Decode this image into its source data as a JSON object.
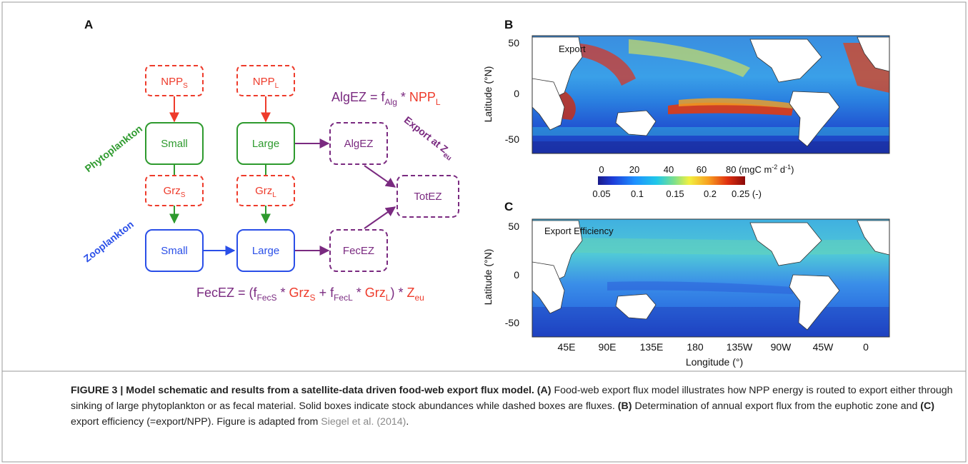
{
  "panels": {
    "a": "A",
    "b": "B",
    "c": "C"
  },
  "schematic": {
    "npp_small": "NPP",
    "npp_small_sub": "S",
    "npp_large": "NPP",
    "npp_large_sub": "L",
    "phyto_small": "Small",
    "phyto_large": "Large",
    "grz_small": "Grz",
    "grz_small_sub": "S",
    "grz_large": "Grz",
    "grz_large_sub": "L",
    "zoo_small": "Small",
    "zoo_large": "Large",
    "alg_ez": "AlgEZ",
    "fec_ez": "FecEZ",
    "tot_ez": "TotEZ",
    "label_phyto": "Phytoplankton",
    "label_zoo": "Zooplankton",
    "label_export": "Export at Z",
    "label_export_sub": "eu",
    "eq_alg": {
      "lhs": "AlgEZ = f",
      "lhs_sub": "Alg",
      "mid": " * ",
      "npp": "NPP",
      "npp_sub": "L"
    },
    "eq_fec": {
      "lhs": "FecEZ = (f",
      "f1_sub": "FecS",
      "star1": " * ",
      "grz1": "Grz",
      "grz1_sub": "S",
      "plus": " + f",
      "f2_sub": "FecL",
      "star2": " * ",
      "grz2": "Grz",
      "grz2_sub": "L",
      "close": ") * ",
      "z": "Z",
      "z_sub": "eu"
    }
  },
  "maps": {
    "b_title": "Export",
    "c_title": "Export Efficiency",
    "y_label": "Latitude (°N)",
    "y_ticks": [
      "50",
      "0",
      "-50"
    ],
    "x_label": "Longitude (°)",
    "x_ticks": [
      "45E",
      "90E",
      "135E",
      "180",
      "135W",
      "90W",
      "45W",
      "0"
    ],
    "colorbar_top": [
      "0",
      "20",
      "40",
      "60",
      "80 (mgC m",
      "-2",
      " d",
      "-1",
      ")"
    ],
    "colorbar_bottom": [
      "0.05",
      "0.1",
      "0.15",
      "0.2",
      "0.25 (-)"
    ]
  },
  "colors": {
    "red": "#ee3b2b",
    "green": "#2e9a2e",
    "blue": "#2a4fe8",
    "purple": "#7a2a80"
  },
  "caption": {
    "figure_label": "FIGURE 3 | Model schematic and results from a satellite-data driven food-web export flux model. ",
    "a_label": "(A)",
    "a_text": " Food-web export flux model illustrates how NPP energy is routed to export either through sinking of large phytoplankton or as fecal material. Solid boxes indicate stock abundances while dashed boxes are fluxes. ",
    "b_label": "(B)",
    "b_text": " Determination of annual export flux from the euphotic zone and ",
    "c_label": "(C)",
    "c_text": " export efficiency (=export/NPP). Figure is adapted from ",
    "citation": "Siegel et al. (2014)",
    "end": "."
  }
}
